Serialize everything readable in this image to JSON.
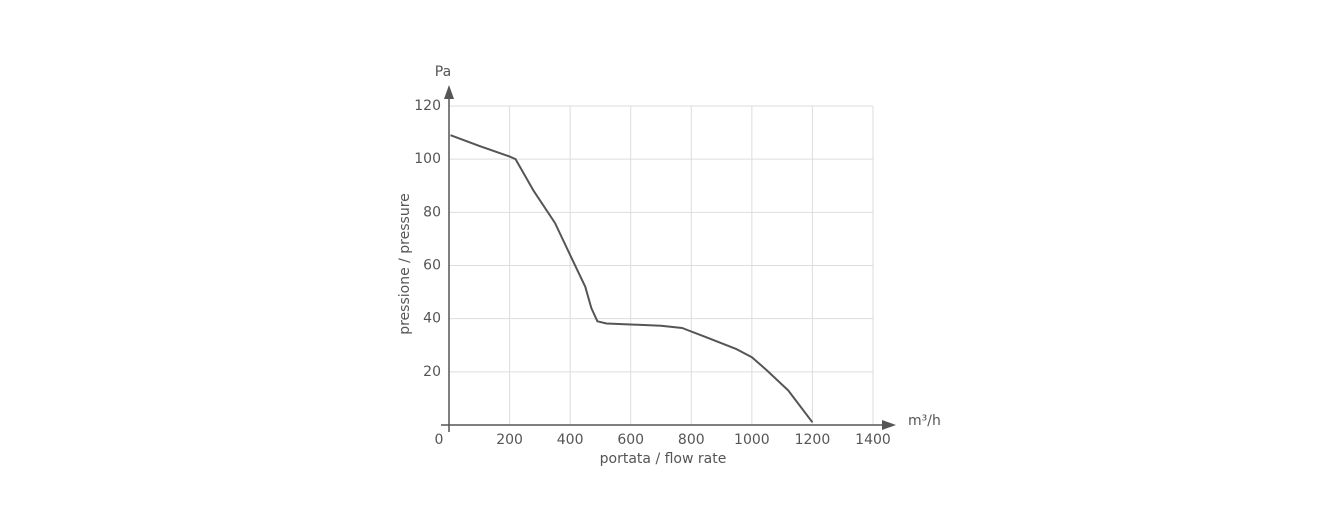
{
  "chart_data": {
    "type": "line",
    "y_unit": "Pa",
    "x_unit": "m³/h",
    "x_label": "portata / flow rate",
    "y_label": "pressione / pressure",
    "x": [
      5,
      100,
      200,
      220,
      280,
      350,
      400,
      450,
      470,
      490,
      520,
      600,
      700,
      770,
      850,
      950,
      1000,
      1050,
      1120,
      1200
    ],
    "values": [
      109,
      105,
      101,
      100,
      88,
      76,
      64,
      52,
      44,
      39,
      38.2,
      37.8,
      37.3,
      36.5,
      33,
      28.5,
      25.5,
      20.5,
      13,
      1
    ],
    "color": "#555555",
    "xlim": [
      0,
      1400
    ],
    "ylim": [
      0,
      120
    ],
    "xticks": [
      0,
      200,
      400,
      600,
      800,
      1000,
      1200,
      1400
    ],
    "yticks": [
      20,
      40,
      60,
      80,
      100,
      120
    ],
    "grid": true
  }
}
